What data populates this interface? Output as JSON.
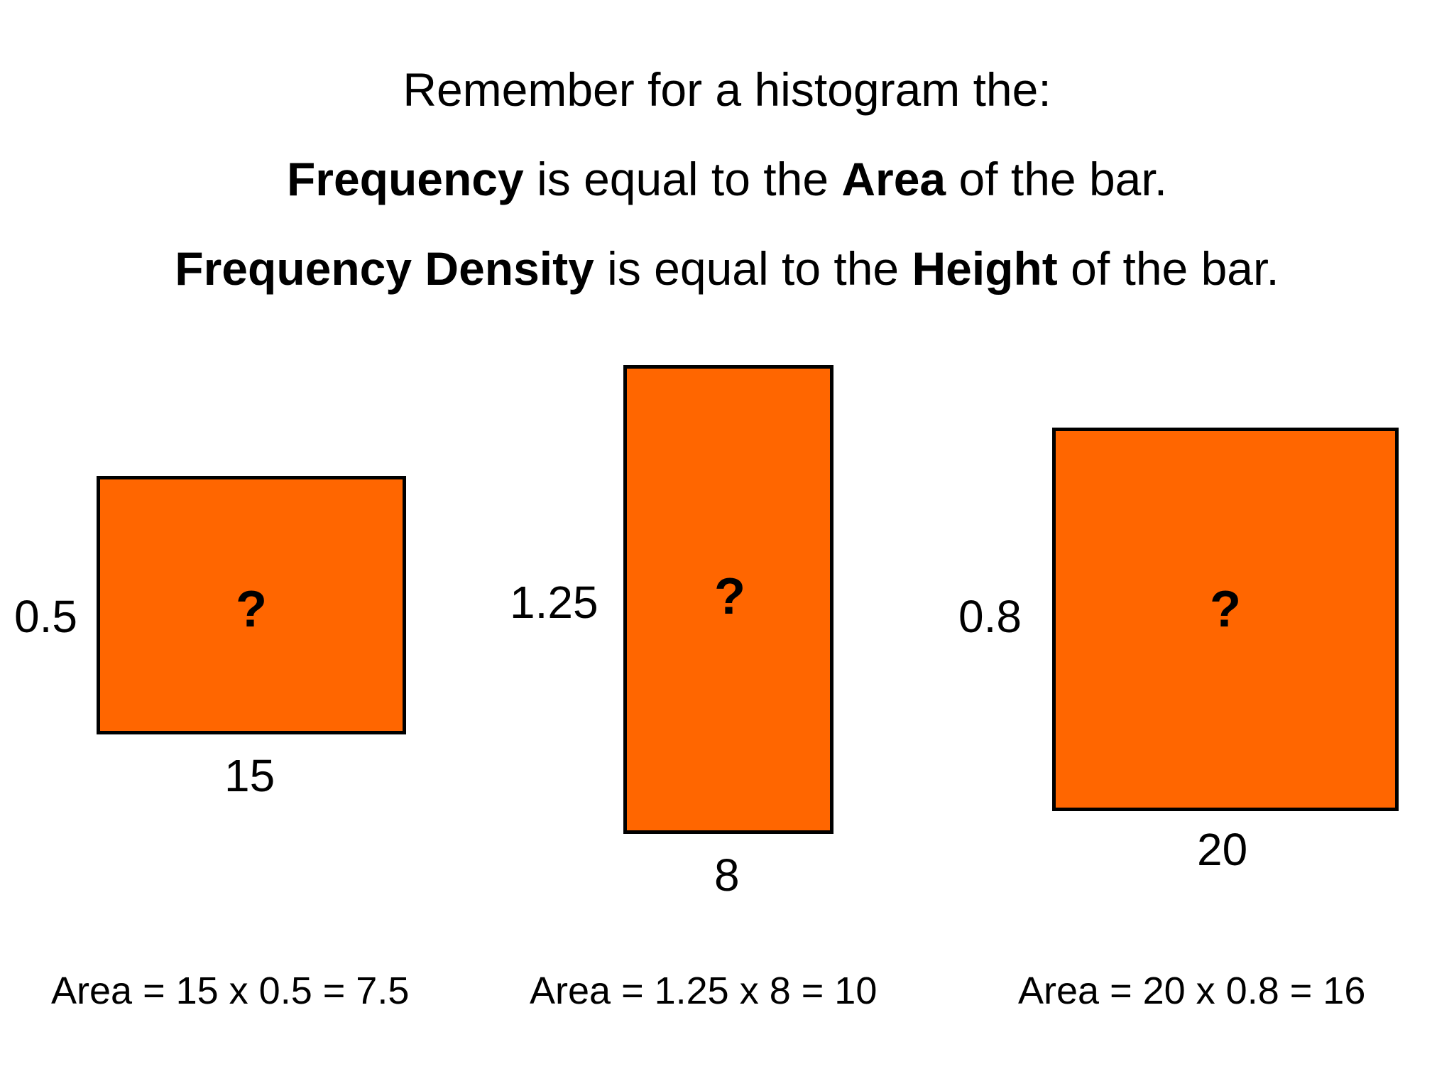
{
  "heading": {
    "line1": "Remember for a histogram the:",
    "line2": {
      "b1": "Frequency",
      "t1": " is equal to the ",
      "b2": "Area",
      "t2": " of the bar."
    },
    "line3": {
      "b1": "Frequency Density",
      "t1": " is equal to the ",
      "b2": "Height",
      "t2": " of the bar."
    }
  },
  "bars": [
    {
      "height_label": "0.5",
      "width_label": "15",
      "mark": "?",
      "area_text": "Area = 15 x 0.5 = 7.5"
    },
    {
      "height_label": "1.25",
      "width_label": "8",
      "mark": "?",
      "area_text": "Area = 1.25 x 8 = 10"
    },
    {
      "height_label": "0.8",
      "width_label": "20",
      "mark": "?",
      "area_text": "Area = 20 x 0.8 = 16"
    }
  ],
  "colors": {
    "bar_fill": "#ff6600",
    "bar_border": "#000000"
  }
}
